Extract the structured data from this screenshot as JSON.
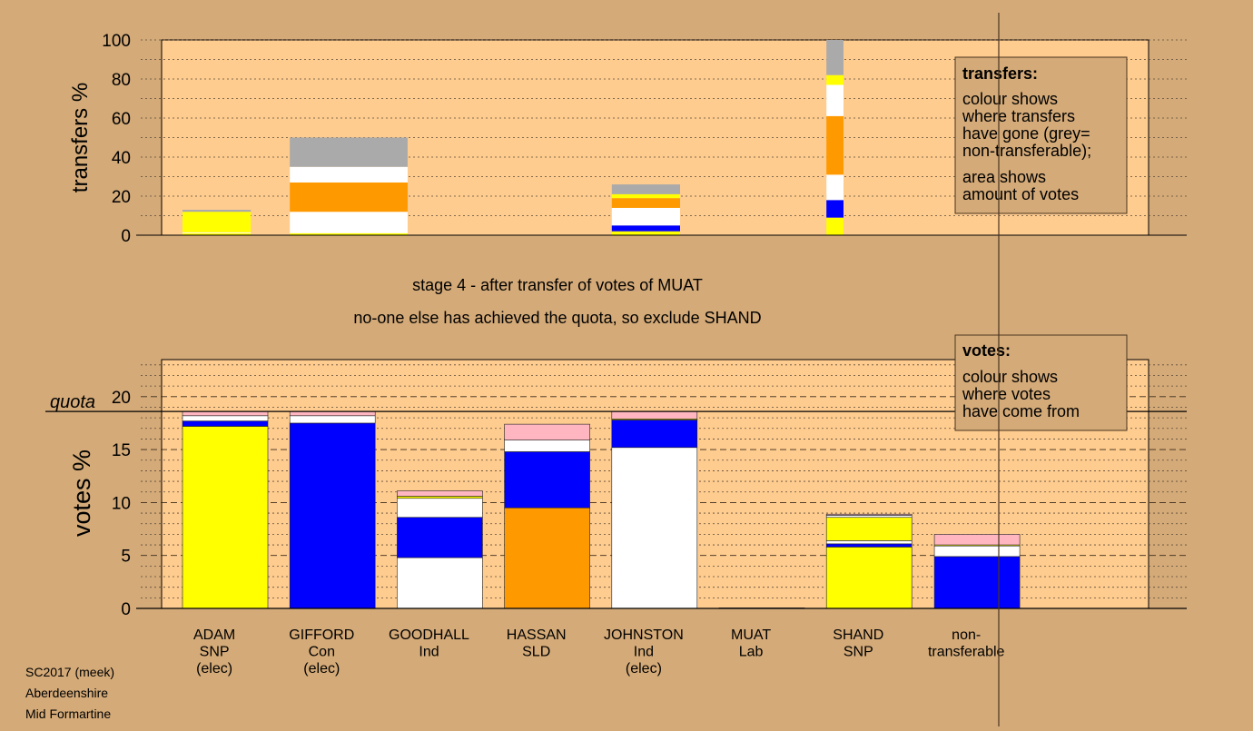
{
  "chart_data": [
    {
      "type": "bar",
      "title": "",
      "ylabel": "transfers %",
      "ylim": [
        0,
        100
      ],
      "yticks": [
        0,
        20,
        40,
        60,
        80,
        100
      ],
      "legend_placement": "top-right",
      "legend": {
        "title": "transfers:",
        "lines": [
          "colour shows",
          "where transfers",
          "have gone (grey=",
          "non-transferable);",
          "area shows",
          "amount of votes"
        ]
      },
      "colors": {
        "yellow": "#ffff00",
        "blue": "#0000ff",
        "white": "#ffffff",
        "orange": "#ff9900",
        "pink": "#ffb6c1",
        "grey": "#aaaaaa"
      },
      "candidates": [
        "ADAM",
        "GIFFORD",
        "GOODHALL",
        "HASSAN",
        "JOHNSTON",
        "MUAT",
        "SHAND",
        "non-transferable"
      ],
      "stacks": [
        {
          "candidate": "ADAM",
          "width_fraction": 0.8,
          "segments": [
            {
              "color": "yellow",
              "from": 0,
              "to": 1
            },
            {
              "color": "white",
              "from": 1,
              "to": 1.5
            },
            {
              "color": "yellow",
              "from": 1.5,
              "to": 12
            },
            {
              "color": "grey",
              "from": 12,
              "to": 13
            }
          ]
        },
        {
          "candidate": "GIFFORD",
          "width_fraction": 1.38,
          "segments": [
            {
              "color": "yellow",
              "from": 0,
              "to": 1
            },
            {
              "color": "white",
              "from": 1,
              "to": 12
            },
            {
              "color": "orange",
              "from": 12,
              "to": 27
            },
            {
              "color": "white",
              "from": 27,
              "to": 35
            },
            {
              "color": "grey",
              "from": 35,
              "to": 50
            }
          ]
        },
        {
          "candidate": "JOHNSTON",
          "width_fraction": 0.8,
          "segments": [
            {
              "color": "yellow",
              "from": 0,
              "to": 2
            },
            {
              "color": "blue",
              "from": 2,
              "to": 5
            },
            {
              "color": "white",
              "from": 5,
              "to": 14
            },
            {
              "color": "orange",
              "from": 14,
              "to": 19
            },
            {
              "color": "yellow",
              "from": 19,
              "to": 21
            },
            {
              "color": "grey",
              "from": 21,
              "to": 26
            }
          ]
        },
        {
          "candidate": "SHAND",
          "width_fraction": 0.2,
          "segments": [
            {
              "color": "yellow",
              "from": 0,
              "to": 9
            },
            {
              "color": "blue",
              "from": 9,
              "to": 18
            },
            {
              "color": "white",
              "from": 18,
              "to": 31
            },
            {
              "color": "orange",
              "from": 31,
              "to": 61
            },
            {
              "color": "white",
              "from": 61,
              "to": 77
            },
            {
              "color": "yellow",
              "from": 77,
              "to": 82
            },
            {
              "color": "grey",
              "from": 82,
              "to": 100
            }
          ]
        }
      ]
    },
    {
      "type": "bar",
      "title": "",
      "ylabel": "votes %",
      "ylim": [
        0,
        23.5
      ],
      "yticks": [
        0,
        5,
        10,
        15,
        20
      ],
      "quota": 18.6,
      "quota_label": "quota",
      "legend_placement": "top-right",
      "legend": {
        "title": "votes:",
        "lines": [
          "colour shows",
          "where votes",
          "have come from"
        ]
      },
      "categories": [
        {
          "name": "ADAM",
          "lines": [
            "ADAM",
            "SNP",
            "(elec)"
          ]
        },
        {
          "name": "GIFFORD",
          "lines": [
            "GIFFORD",
            "Con",
            "(elec)"
          ]
        },
        {
          "name": "GOODHALL",
          "lines": [
            "GOODHALL",
            "Ind"
          ]
        },
        {
          "name": "HASSAN",
          "lines": [
            "HASSAN",
            "SLD"
          ]
        },
        {
          "name": "JOHNSTON",
          "lines": [
            "JOHNSTON",
            "Ind",
            "(elec)"
          ]
        },
        {
          "name": "MUAT",
          "lines": [
            "MUAT",
            "Lab"
          ]
        },
        {
          "name": "SHAND",
          "lines": [
            "SHAND",
            "SNP"
          ]
        },
        {
          "name": "non-transferable",
          "lines": [
            "non-",
            "transferable"
          ]
        }
      ],
      "stacks": [
        {
          "candidate": "ADAM",
          "segments": [
            {
              "color": "yellow",
              "from": 0,
              "to": 17.2
            },
            {
              "color": "blue",
              "from": 17.2,
              "to": 17.7
            },
            {
              "color": "white",
              "from": 17.7,
              "to": 18.2
            },
            {
              "color": "pink",
              "from": 18.2,
              "to": 18.6
            }
          ]
        },
        {
          "candidate": "GIFFORD",
          "segments": [
            {
              "color": "blue",
              "from": 0,
              "to": 17.5
            },
            {
              "color": "white",
              "from": 17.5,
              "to": 18.2
            },
            {
              "color": "pink",
              "from": 18.2,
              "to": 18.6
            }
          ]
        },
        {
          "candidate": "GOODHALL",
          "segments": [
            {
              "color": "white",
              "from": 0,
              "to": 4.8
            },
            {
              "color": "blue",
              "from": 4.8,
              "to": 8.6
            },
            {
              "color": "white",
              "from": 8.6,
              "to": 10.4
            },
            {
              "color": "yellow",
              "from": 10.4,
              "to": 10.6
            },
            {
              "color": "pink",
              "from": 10.6,
              "to": 11.1
            }
          ]
        },
        {
          "candidate": "HASSAN",
          "segments": [
            {
              "color": "orange",
              "from": 0,
              "to": 9.5
            },
            {
              "color": "blue",
              "from": 9.5,
              "to": 14.8
            },
            {
              "color": "white",
              "from": 14.8,
              "to": 15.9
            },
            {
              "color": "pink",
              "from": 15.9,
              "to": 17.4
            }
          ]
        },
        {
          "candidate": "JOHNSTON",
          "segments": [
            {
              "color": "white",
              "from": 0,
              "to": 15.2
            },
            {
              "color": "blue",
              "from": 15.2,
              "to": 17.8
            },
            {
              "color": "yellow",
              "from": 17.8,
              "to": 17.9
            },
            {
              "color": "pink",
              "from": 17.9,
              "to": 18.6
            }
          ]
        },
        {
          "candidate": "MUAT",
          "segments": [
            {
              "color": "blue",
              "from": 0,
              "to": 0.05
            }
          ]
        },
        {
          "candidate": "SHAND",
          "segments": [
            {
              "color": "yellow",
              "from": 0,
              "to": 5.8
            },
            {
              "color": "blue",
              "from": 5.8,
              "to": 6.1
            },
            {
              "color": "white",
              "from": 6.1,
              "to": 6.4
            },
            {
              "color": "yellow",
              "from": 6.4,
              "to": 8.6
            },
            {
              "color": "white",
              "from": 8.6,
              "to": 8.8
            },
            {
              "color": "pink",
              "from": 8.8,
              "to": 8.9
            }
          ]
        },
        {
          "candidate": "non-transferable",
          "segments": [
            {
              "color": "blue",
              "from": 0,
              "to": 4.9
            },
            {
              "color": "white",
              "from": 4.9,
              "to": 5.9
            },
            {
              "color": "yellow",
              "from": 5.9,
              "to": 6.0
            },
            {
              "color": "pink",
              "from": 6.0,
              "to": 7.0
            }
          ]
        }
      ]
    }
  ],
  "stage_text": "stage 4 - after transfer of votes of MUAT",
  "exclude_text": "no-one else has achieved the quota, so exclude SHAND",
  "footer": [
    "SC2017 (meek)",
    "Aberdeenshire",
    "Mid Formartine"
  ]
}
